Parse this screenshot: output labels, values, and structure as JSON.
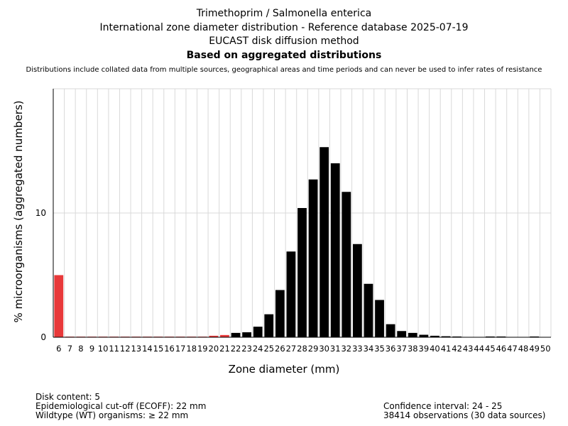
{
  "chart_data": {
    "type": "bar",
    "title_lines": [
      "Trimethoprim / Salmonella enterica",
      "International zone diameter distribution - Reference database 2025-07-19",
      "EUCAST disk diffusion method"
    ],
    "title_bold": "Based on aggregated distributions",
    "subtitle": "Distributions include collated data from multiple sources, geographical areas and time periods and can never be used to infer rates of resistance",
    "xlabel": "Zone diameter (mm)",
    "ylabel": "% microorganisms (aggregated numbers)",
    "ylim": [
      0,
      20
    ],
    "yticks": [
      0,
      10
    ],
    "grid": true,
    "categories": [
      "6",
      "7",
      "8",
      "9",
      "10",
      "11",
      "12",
      "13",
      "14",
      "15",
      "16",
      "17",
      "18",
      "19",
      "20",
      "21",
      "22",
      "23",
      "24",
      "25",
      "26",
      "27",
      "28",
      "29",
      "30",
      "31",
      "32",
      "33",
      "34",
      "35",
      "36",
      "37",
      "38",
      "39",
      "40",
      "41",
      "42",
      "43",
      "44",
      "45",
      "46",
      "47",
      "48",
      "49",
      "50"
    ],
    "values": [
      5.0,
      0.05,
      0.05,
      0.05,
      0.05,
      0.05,
      0.05,
      0.05,
      0.05,
      0.05,
      0.05,
      0.05,
      0.05,
      0.05,
      0.12,
      0.18,
      0.35,
      0.4,
      0.85,
      1.85,
      3.8,
      6.9,
      10.4,
      12.7,
      15.3,
      14.0,
      11.7,
      7.5,
      4.3,
      3.0,
      1.05,
      0.5,
      0.35,
      0.2,
      0.12,
      0.08,
      0.06,
      0.0,
      0.0,
      0.06,
      0.06,
      0.0,
      0.0,
      0.06,
      0.0
    ],
    "ecoff": 22,
    "colors": {
      "below_ecoff": "#e8393a",
      "above_ecoff": "#000000",
      "grid": "#d9d9d9",
      "axis": "#000000"
    }
  },
  "footer": {
    "disk_content": "Disk content: 5",
    "ecoff": "Epidemiological cut-off (ECOFF): 22 mm",
    "wildtype": "Wildtype (WT) organisms: ≥ 22 mm",
    "confidence": "Confidence interval: 24 - 25",
    "observations": "38414 observations (30 data sources)"
  }
}
